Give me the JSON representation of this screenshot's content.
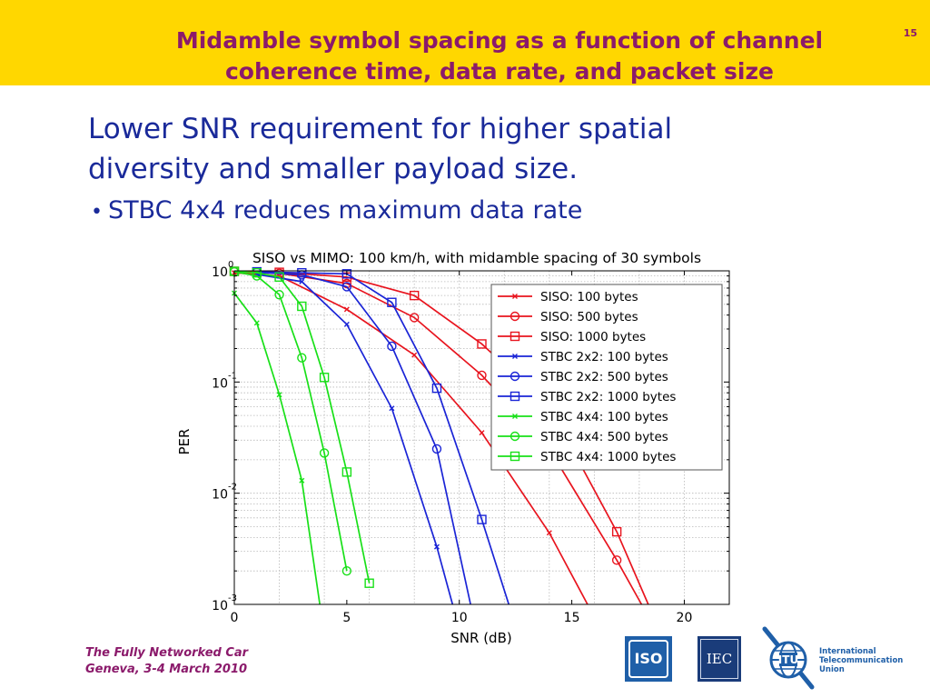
{
  "slide": {
    "title_line1": "Midamble symbol spacing as a function of channel",
    "title_line2": "coherence time, data rate, and packet size",
    "number": "15",
    "heading_line1": "Lower SNR requirement for higher spatial",
    "heading_line2": "diversity and smaller payload size.",
    "bullet": "STBC 4x4 reduces maximum data rate",
    "footer_line1": "The Fully Networked Car",
    "footer_line2": "Geneva, 3-4 March 2010",
    "colors": {
      "header_bg": "#ffd700",
      "title": "#8b1a6b",
      "body": "#1a2a9a"
    }
  },
  "logos": {
    "iso": "ISO",
    "iec": "IEC",
    "itu_line1": "International",
    "itu_line2": "Telecommunication",
    "itu_line3": "Union"
  },
  "chart_data": {
    "type": "line",
    "title": "SISO vs MIMO: 100 km/h, with midamble spacing of 30 symbols",
    "xlabel": "SNR (dB)",
    "ylabel": "PER",
    "xlim": [
      0,
      22
    ],
    "ylim": [
      0.001,
      1
    ],
    "yscale": "log",
    "xticks": [
      "0",
      "5",
      "10",
      "15",
      "20"
    ],
    "yticks": [
      {
        "base": "10",
        "exp": "0"
      },
      {
        "base": "10",
        "exp": "-1"
      },
      {
        "base": "10",
        "exp": "-2"
      },
      {
        "base": "10",
        "exp": "-3"
      }
    ],
    "grid": true,
    "legend_position": "top-right",
    "series": [
      {
        "name": "SISO: 100 bytes",
        "color": "#e8141e",
        "marker": "x",
        "x": [
          0,
          2,
          5,
          8,
          11,
          14,
          15.7
        ],
        "y": [
          0.96,
          0.9,
          0.45,
          0.175,
          0.035,
          0.0044,
          0.001
        ]
      },
      {
        "name": "SISO: 500 bytes",
        "color": "#e8141e",
        "marker": "o",
        "x": [
          0,
          2,
          5,
          8,
          11,
          14,
          17,
          18.1
        ],
        "y": [
          0.98,
          0.95,
          0.77,
          0.38,
          0.115,
          0.025,
          0.0025,
          0.001
        ]
      },
      {
        "name": "SISO: 1000 bytes",
        "color": "#e8141e",
        "marker": "s",
        "x": [
          0,
          2,
          5,
          8,
          11,
          14,
          17,
          18.4
        ],
        "y": [
          0.99,
          0.97,
          0.88,
          0.6,
          0.22,
          0.06,
          0.0045,
          0.001
        ]
      },
      {
        "name": "STBC 2x2: 100 bytes",
        "color": "#1a24d6",
        "marker": "x",
        "x": [
          1,
          3,
          5,
          7,
          9,
          9.7
        ],
        "y": [
          0.93,
          0.8,
          0.33,
          0.058,
          0.0033,
          0.001
        ]
      },
      {
        "name": "STBC 2x2: 500 bytes",
        "color": "#1a24d6",
        "marker": "o",
        "x": [
          1,
          3,
          5,
          7,
          9,
          10.5
        ],
        "y": [
          0.97,
          0.92,
          0.72,
          0.21,
          0.025,
          0.001
        ]
      },
      {
        "name": "STBC 2x2: 1000 bytes",
        "color": "#1a24d6",
        "marker": "s",
        "x": [
          1,
          3,
          5,
          7,
          9,
          11,
          12.2
        ],
        "y": [
          0.98,
          0.96,
          0.94,
          0.52,
          0.088,
          0.0058,
          0.001
        ]
      },
      {
        "name": "STBC 4x4: 100 bytes",
        "color": "#18e018",
        "marker": "x",
        "x": [
          0,
          1,
          2,
          3,
          3.8
        ],
        "y": [
          0.63,
          0.34,
          0.077,
          0.013,
          0.001
        ]
      },
      {
        "name": "STBC 4x4: 500 bytes",
        "color": "#18e018",
        "marker": "o",
        "x": [
          0,
          1,
          2,
          3,
          4,
          5
        ],
        "y": [
          0.98,
          0.9,
          0.61,
          0.165,
          0.023,
          0.002
        ]
      },
      {
        "name": "STBC 4x4: 1000 bytes",
        "color": "#18e018",
        "marker": "s",
        "x": [
          0,
          1,
          2,
          3,
          4,
          5,
          6
        ],
        "y": [
          0.99,
          0.96,
          0.88,
          0.48,
          0.11,
          0.0155,
          0.00155
        ]
      }
    ]
  }
}
